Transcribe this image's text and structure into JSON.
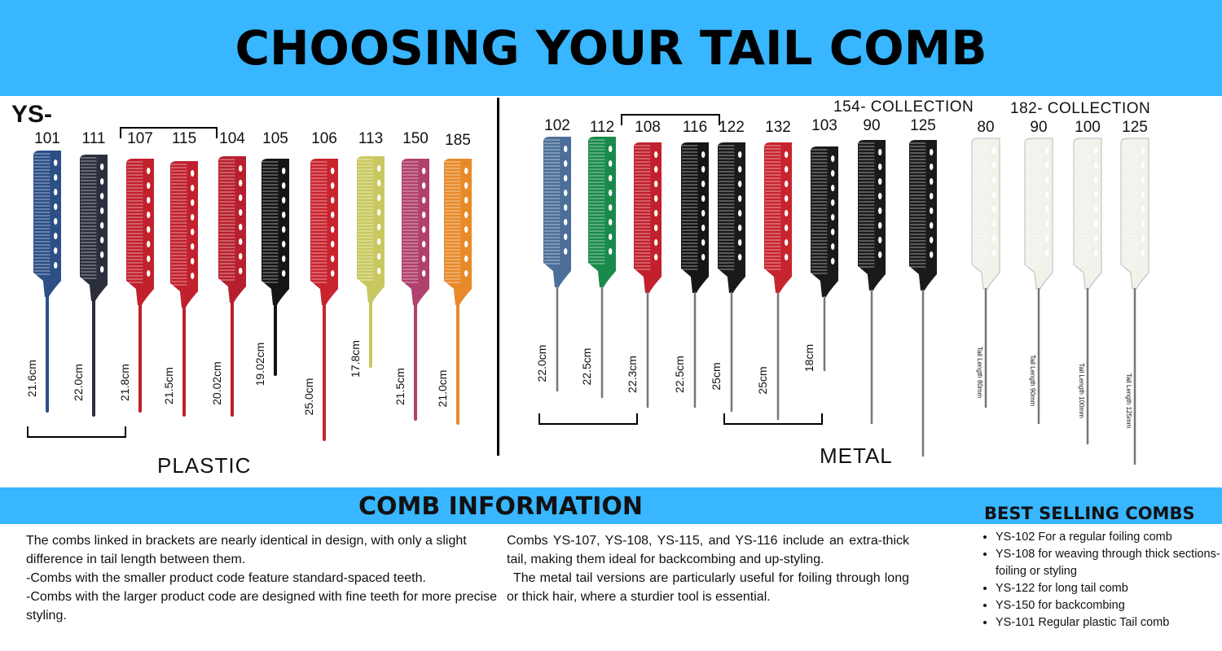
{
  "header": {
    "title": "CHOOSING YOUR TAIL COMB"
  },
  "prefix": "YS-",
  "plastic": {
    "label": "PLASTIC",
    "combs": [
      {
        "code": "101",
        "length": "21.6cm",
        "color": "#2c4f86"
      },
      {
        "code": "111",
        "length": "22.0cm",
        "color": "#2b2e3c"
      },
      {
        "code": "107",
        "length": "21.8cm",
        "color": "#c1202c"
      },
      {
        "code": "115",
        "length": "21.5cm",
        "color": "#c1202c"
      },
      {
        "code": "104",
        "length": "20.02cm",
        "color": "#b81f2e"
      },
      {
        "code": "105",
        "length": "19.02cm",
        "color": "#151515"
      },
      {
        "code": "106",
        "length": "25.0cm",
        "color": "#c8242e"
      },
      {
        "code": "113",
        "length": "17.8cm",
        "color": "#c9c860"
      },
      {
        "code": "150",
        "length": "21.5cm",
        "color": "#b0406e"
      },
      {
        "code": "185",
        "length": "21.0cm",
        "color": "#e88a2a"
      }
    ]
  },
  "metal": {
    "label": "METAL",
    "combs": [
      {
        "code": "102",
        "length": "22.0cm",
        "color": "#4b6f98"
      },
      {
        "code": "112",
        "length": "22.5cm",
        "color": "#1a8a4a"
      },
      {
        "code": "108",
        "length": "22.3cm",
        "color": "#c1202c"
      },
      {
        "code": "116",
        "length": "22.5cm",
        "color": "#151515"
      },
      {
        "code": "122",
        "length": "25cm",
        "color": "#1a1a1a"
      },
      {
        "code": "132",
        "length": "25cm",
        "color": "#c8242e"
      },
      {
        "code": "103",
        "length": "18cm",
        "color": "#1a1a1a"
      }
    ],
    "collection_154": {
      "label": "154- COLLECTION",
      "combs": [
        {
          "code": "90",
          "length": "",
          "color": "#1a1a1a"
        },
        {
          "code": "125",
          "length": "",
          "color": "#1a1a1a"
        }
      ]
    },
    "collection_182": {
      "label": "182- COLLECTION",
      "combs": [
        {
          "code": "80",
          "length": "Tail Length 80mm",
          "color": "#f2f1ea"
        },
        {
          "code": "90",
          "length": "Tail Length 90mm",
          "color": "#f2f1ea"
        },
        {
          "code": "100",
          "length": "Tail Length 100mm",
          "color": "#f2f1ea"
        },
        {
          "code": "125",
          "length": "Tail Length 125mm",
          "color": "#f2f1ea"
        }
      ]
    }
  },
  "info": {
    "title": "COMB INFORMATION",
    "col1": [
      "The combs linked in brackets are nearly identical in design, with only a slight difference in tail length between them.",
      "-Combs with the smaller product code feature standard-spaced teeth.",
      "-Combs with the larger product code are designed with fine teeth for more precise styling."
    ],
    "col2": [
      "Combs YS-107, YS-108, YS-115, and YS-116 include an extra-thick tail, making them ideal for backcombing and up-styling.",
      "The metal tail versions are particularly useful for foiling through long or thick hair, where a sturdier tool is essential."
    ]
  },
  "best_selling": {
    "title": "BEST SELLING COMBS",
    "items": [
      "YS-102 For a regular foiling comb",
      "YS-108 for weaving through thick sections- foiling or styling",
      "YS-122 for long tail comb",
      "YS-150 for backcombing",
      "YS-101 Regular plastic Tail comb"
    ]
  }
}
